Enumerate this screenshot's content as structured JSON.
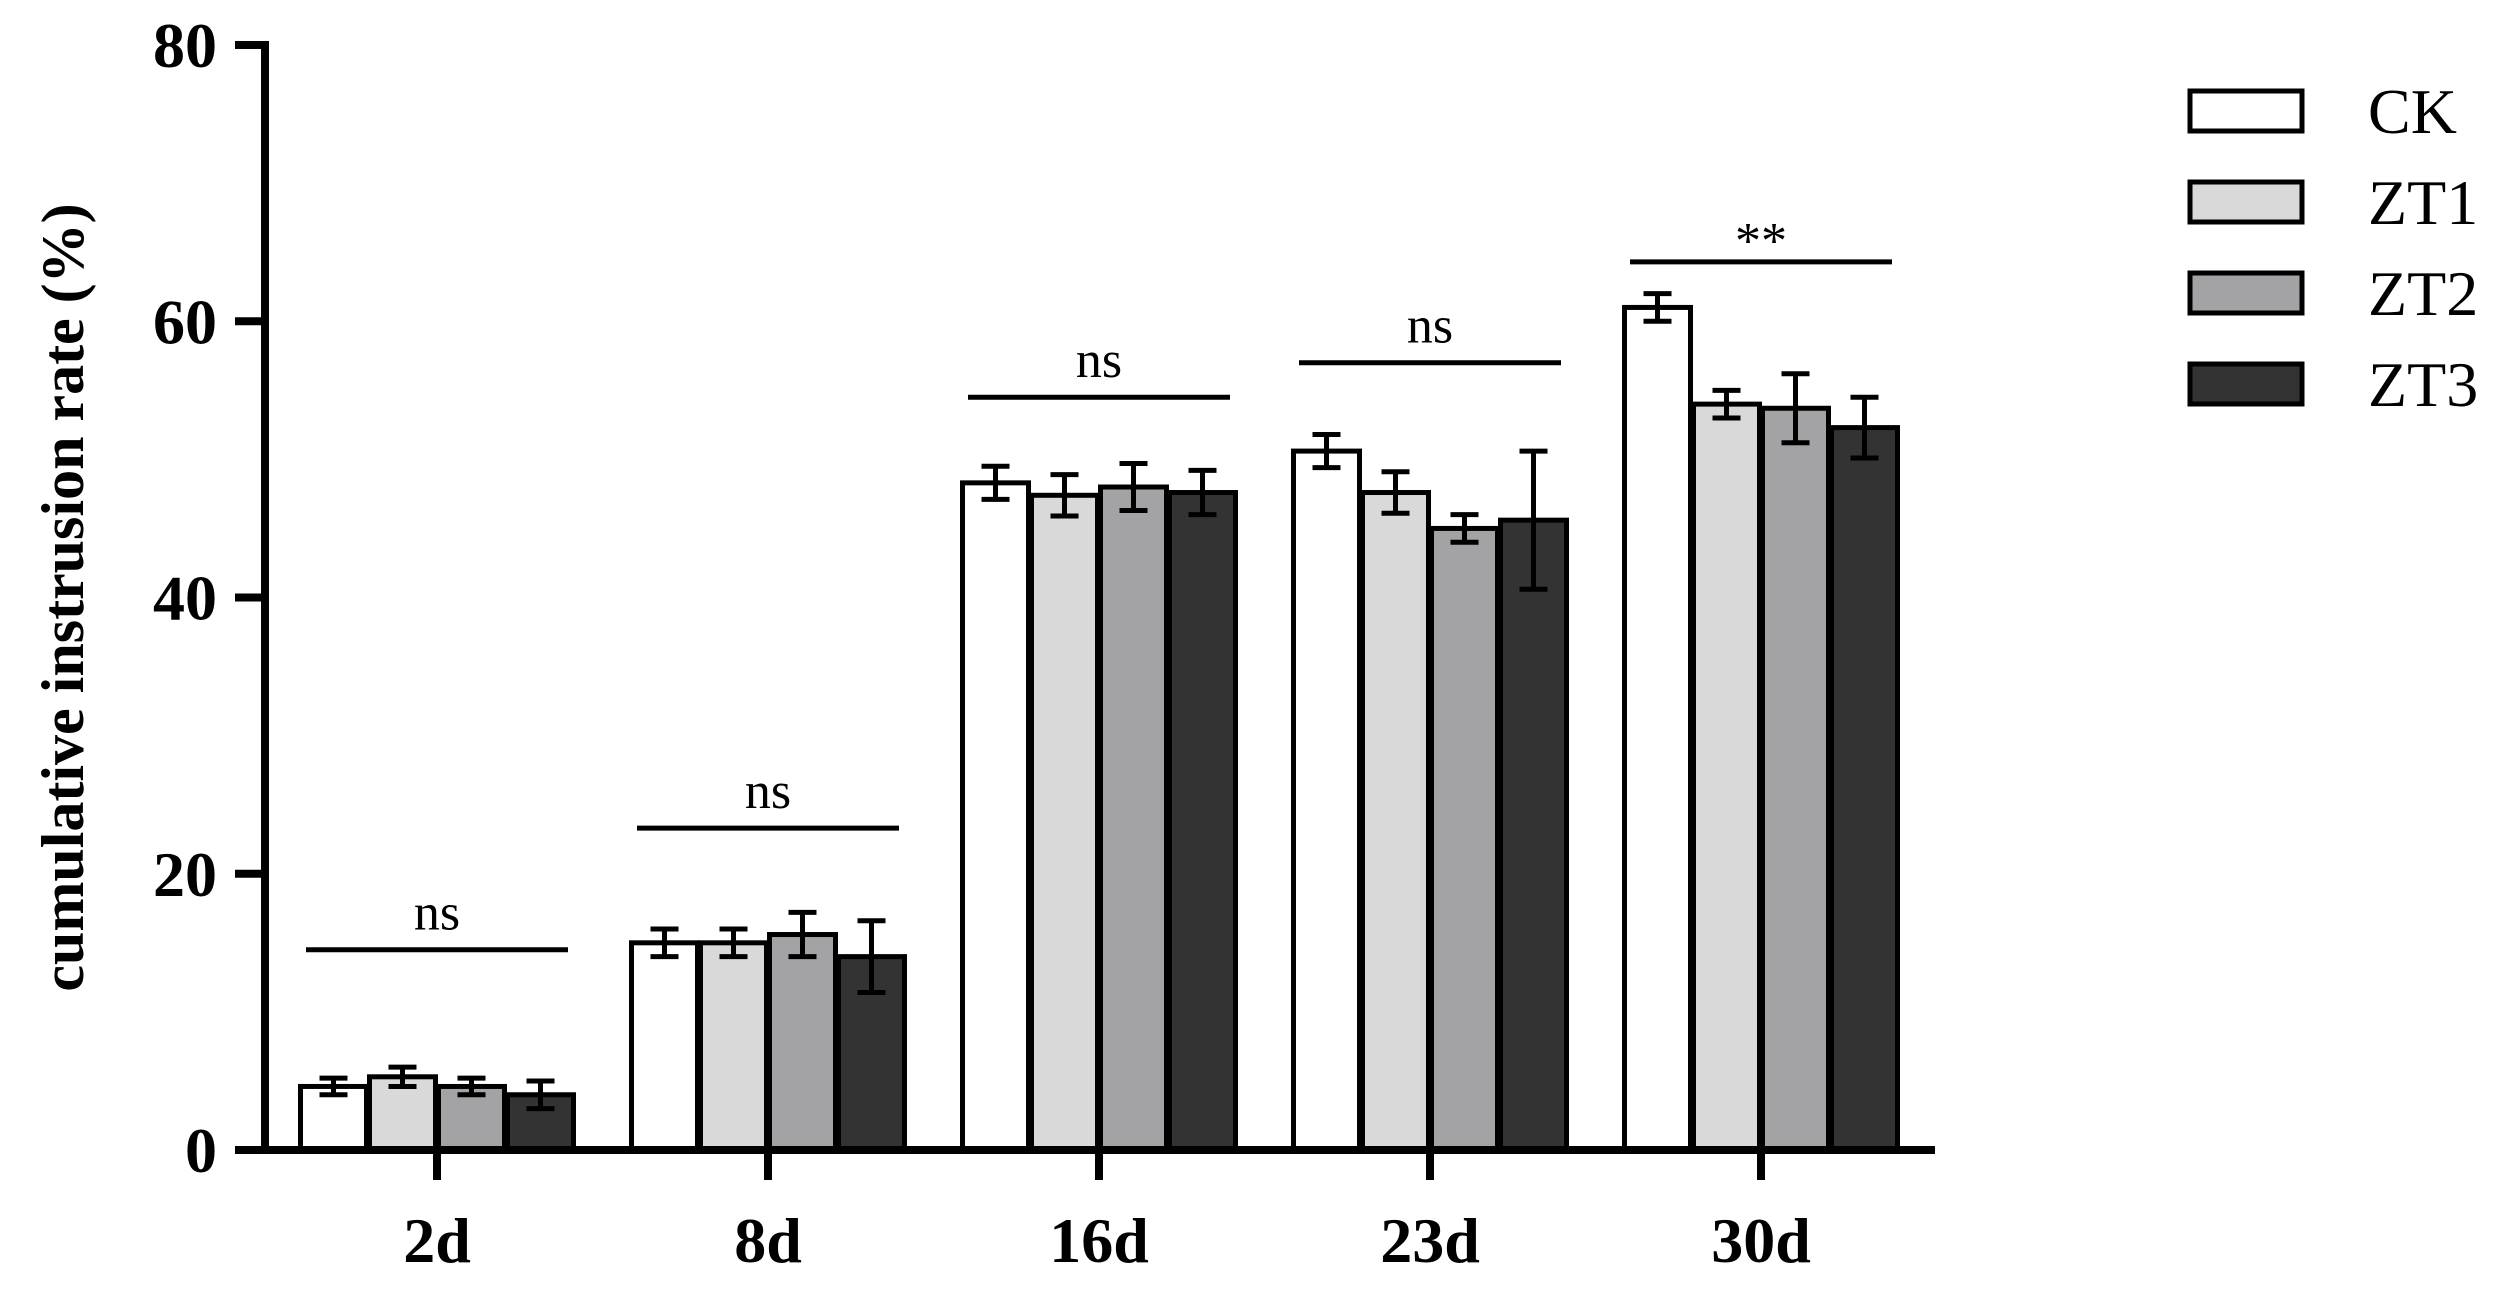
{
  "chart_data": {
    "type": "bar",
    "categories": [
      "2d",
      "8d",
      "16d",
      "23d",
      "30d"
    ],
    "ylabel": "cumulative instrusion rate  (%)",
    "xlabel": "",
    "ylim": [
      0,
      80
    ],
    "yticks": [
      0,
      20,
      40,
      60,
      80
    ],
    "grid": false,
    "legend_position": "top-right",
    "series": [
      {
        "name": "CK",
        "color": "#ffffff",
        "values": [
          4.6,
          15.0,
          48.3,
          50.6,
          61.0
        ],
        "errors": [
          0.6,
          1.0,
          1.2,
          1.2,
          1.0
        ]
      },
      {
        "name": "ZT1",
        "color": "#d9d9d9",
        "values": [
          5.3,
          15.0,
          47.4,
          47.6,
          54.0
        ],
        "errors": [
          0.7,
          1.0,
          1.5,
          1.5,
          1.0
        ]
      },
      {
        "name": "ZT2",
        "color": "#a3a3a6",
        "values": [
          4.6,
          15.6,
          48.0,
          45.0,
          53.7
        ],
        "errors": [
          0.6,
          1.6,
          1.7,
          1.0,
          2.5
        ]
      },
      {
        "name": "ZT3",
        "color": "#333333",
        "values": [
          4.0,
          14.0,
          47.6,
          45.6,
          52.3
        ],
        "errors": [
          1.0,
          2.6,
          1.6,
          5.0,
          2.2
        ]
      }
    ],
    "significance": [
      {
        "label": "ns",
        "y": 14.5
      },
      {
        "label": "ns",
        "y": 23.3
      },
      {
        "label": "ns",
        "y": 54.5
      },
      {
        "label": "ns",
        "y": 57.0
      },
      {
        "label": "**",
        "y": 64.3
      }
    ]
  }
}
